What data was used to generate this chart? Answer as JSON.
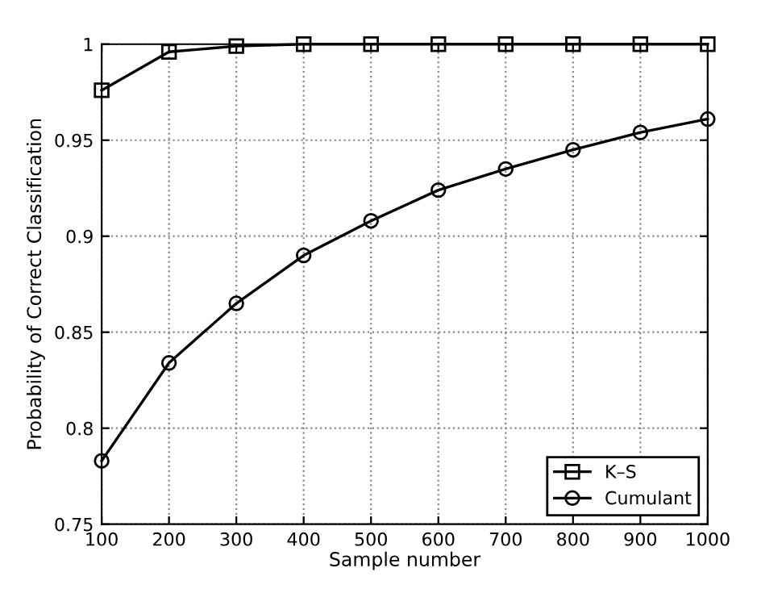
{
  "chart_data": {
    "type": "line",
    "xlabel": "Sample number",
    "ylabel": "Probability of Correct Classification",
    "x": [
      100,
      200,
      300,
      400,
      500,
      600,
      700,
      800,
      900,
      1000
    ],
    "series": [
      {
        "name": "K–S",
        "color": "#000000",
        "marker": "square",
        "values": [
          0.976,
          0.996,
          0.999,
          1.0,
          1.0,
          1.0,
          1.0,
          1.0,
          1.0,
          1.0
        ]
      },
      {
        "name": "Cumulant",
        "color": "#000000",
        "marker": "circle",
        "values": [
          0.783,
          0.834,
          0.865,
          0.89,
          0.908,
          0.924,
          0.935,
          0.945,
          0.954,
          0.961
        ]
      }
    ],
    "xlim": [
      100,
      1000
    ],
    "ylim": [
      0.75,
      1
    ],
    "xticks": [
      100,
      200,
      300,
      400,
      500,
      600,
      700,
      800,
      900,
      1000
    ],
    "yticks": [
      0.75,
      0.8,
      0.85,
      0.9,
      0.95,
      1
    ],
    "grid": true,
    "legend": "bottom right",
    "line_style": "solid"
  }
}
